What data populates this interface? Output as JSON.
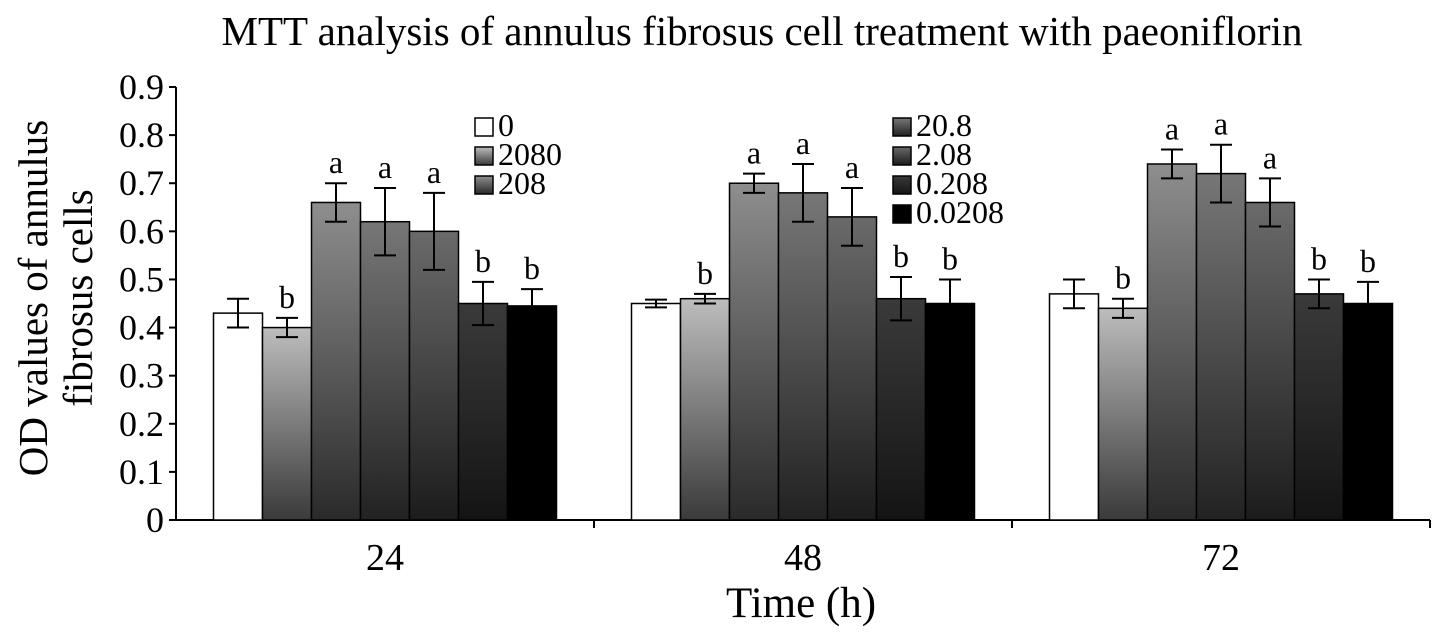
{
  "chart_data": {
    "type": "bar",
    "title": "MTT analysis of annulus fibrosus cell treatment with paeoniflorin",
    "xlabel": "Time (h)",
    "ylabel_lines": [
      "OD values of annulus",
      "fibrosus cells"
    ],
    "categories": [
      "24",
      "48",
      "72"
    ],
    "ylim": [
      0,
      0.9
    ],
    "yticks": [
      "0",
      "0.1",
      "0.2",
      "0.3",
      "0.4",
      "0.5",
      "0.6",
      "0.7",
      "0.8",
      "0.9"
    ],
    "grid": false,
    "series": [
      {
        "name": "0",
        "values": [
          0.43,
          0.45,
          0.47
        ],
        "errors": [
          0.03,
          0.008,
          0.03
        ],
        "sig": [
          "",
          "",
          ""
        ],
        "color_top": "#ffffff",
        "color_bottom": "#ffffff"
      },
      {
        "name": "2080",
        "values": [
          0.4,
          0.46,
          0.44
        ],
        "errors": [
          0.02,
          0.01,
          0.02
        ],
        "sig": [
          "b",
          "b",
          "b"
        ],
        "color_top": "#bdbdbd",
        "color_bottom": "#3a3a3a"
      },
      {
        "name": "208",
        "values": [
          0.66,
          0.7,
          0.74
        ],
        "errors": [
          0.04,
          0.02,
          0.03
        ],
        "sig": [
          "a",
          "a",
          "a"
        ],
        "color_top": "#8e8e8e",
        "color_bottom": "#2a2a2a"
      },
      {
        "name": "20.8",
        "values": [
          0.62,
          0.68,
          0.72
        ],
        "errors": [
          0.07,
          0.06,
          0.06
        ],
        "sig": [
          "a",
          "a",
          "a"
        ],
        "color_top": "#777777",
        "color_bottom": "#222222"
      },
      {
        "name": "2.08",
        "values": [
          0.6,
          0.63,
          0.66
        ],
        "errors": [
          0.08,
          0.06,
          0.05
        ],
        "sig": [
          "a",
          "a",
          "a"
        ],
        "color_top": "#6a6a6a",
        "color_bottom": "#1c1c1c"
      },
      {
        "name": "0.208",
        "values": [
          0.45,
          0.46,
          0.47
        ],
        "errors": [
          0.045,
          0.045,
          0.03
        ],
        "sig": [
          "b",
          "b",
          "b"
        ],
        "color_top": "#3a3a3a",
        "color_bottom": "#141414"
      },
      {
        "name": "0.0208",
        "values": [
          0.445,
          0.45,
          0.45
        ],
        "errors": [
          0.035,
          0.05,
          0.045
        ],
        "sig": [
          "b",
          "b",
          "b"
        ],
        "color_top": "#000000",
        "color_bottom": "#000000"
      }
    ],
    "legend": {
      "placement": "top-center, two columns",
      "columns": [
        [
          "0",
          "2080",
          "208"
        ],
        [
          "20.8",
          "2.08",
          "0.208",
          "0.0208"
        ]
      ]
    }
  }
}
